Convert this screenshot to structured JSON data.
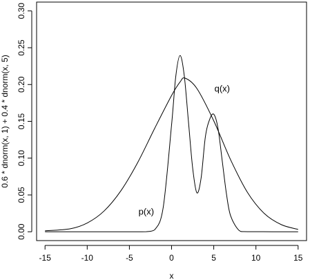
{
  "chart_data": {
    "type": "line",
    "title": "",
    "xlabel": "x",
    "ylabel": "0.6 * dnorm(x, 1) + 0.4 * dnorm(x, 5)",
    "xlim": [
      -16,
      16
    ],
    "ylim": [
      -0.012,
      0.312
    ],
    "x_ticks": [
      -15,
      -10,
      -5,
      0,
      5,
      10,
      15
    ],
    "x_tick_labels": [
      "-15",
      "-10",
      "-5",
      "0",
      "5",
      "10",
      "15"
    ],
    "y_ticks": [
      0.0,
      0.05,
      0.1,
      0.15,
      0.2,
      0.25,
      0.3
    ],
    "y_tick_labels": [
      "0.00",
      "0.05",
      "0.10",
      "0.15",
      "0.20",
      "0.25",
      "0.30"
    ],
    "grid": false,
    "series": [
      {
        "name": "p(x)",
        "x": [
          -15,
          -5,
          -4,
          -3,
          -2,
          -1,
          0,
          0.5,
          1,
          1.5,
          2,
          2.5,
          3,
          3.5,
          4,
          4.5,
          5,
          5.5,
          6,
          6.5,
          7,
          8,
          9,
          15
        ],
        "y": [
          0.0,
          0.0,
          0.0,
          0.0001,
          0.0027,
          0.0324,
          0.1452,
          0.2112,
          0.2394,
          0.2125,
          0.1497,
          0.0866,
          0.0529,
          0.0729,
          0.1285,
          0.1522,
          0.1596,
          0.1408,
          0.0968,
          0.0519,
          0.0216,
          0.0018,
          0.0001,
          0.0
        ]
      },
      {
        "name": "q(x)",
        "x": [
          -15,
          -12,
          -10,
          -8,
          -6,
          -4,
          -2,
          0,
          1,
          1.6,
          3,
          5,
          7,
          9,
          11,
          13,
          15
        ],
        "y": [
          0.0013,
          0.0041,
          0.0119,
          0.0282,
          0.0558,
          0.0944,
          0.1405,
          0.1851,
          0.2034,
          0.2087,
          0.1946,
          0.1507,
          0.0977,
          0.0534,
          0.0247,
          0.0097,
          0.0032
        ]
      }
    ],
    "annotations": [
      {
        "text": "p(x)",
        "x": -3.0,
        "y": 0.028
      },
      {
        "text": "q(x)",
        "x": 6.0,
        "y": 0.195
      }
    ]
  }
}
